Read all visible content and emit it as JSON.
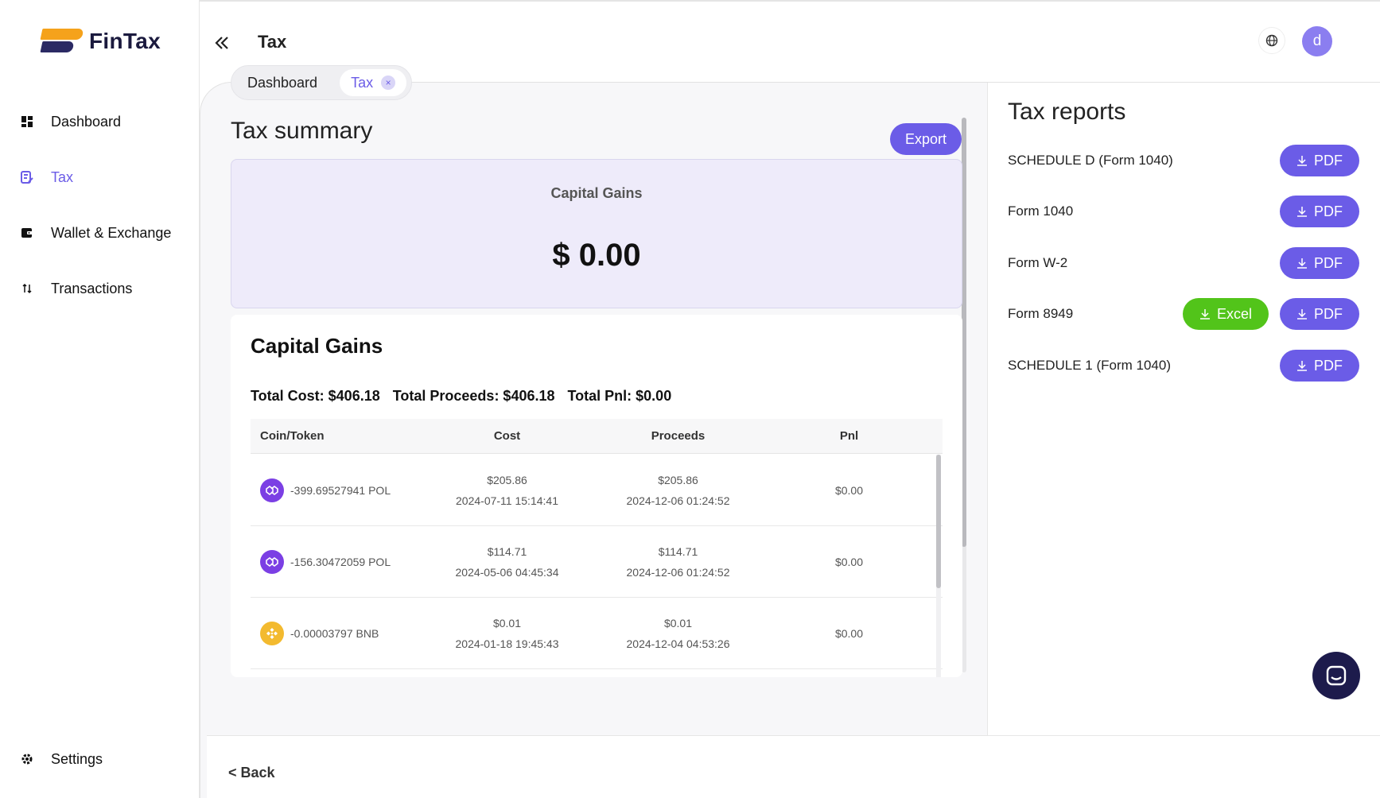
{
  "app": {
    "brand": "FinTax",
    "title": "Tax"
  },
  "sidebar": {
    "items": [
      {
        "label": "Dashboard",
        "icon": "dashboard-icon",
        "active": false
      },
      {
        "label": "Tax",
        "icon": "tax-icon",
        "active": true
      },
      {
        "label": "Wallet & Exchange",
        "icon": "wallet-icon",
        "active": false
      },
      {
        "label": "Transactions",
        "icon": "transactions-icon",
        "active": false
      }
    ],
    "settings_label": "Settings"
  },
  "header": {
    "avatar_initial": "d"
  },
  "tabs": [
    {
      "label": "Dashboard",
      "active": false
    },
    {
      "label": "Tax",
      "active": true,
      "closable": true
    }
  ],
  "summary": {
    "title": "Tax summary",
    "export_label": "Export",
    "card_label": "Capital Gains",
    "card_value": "$ 0.00"
  },
  "capital_gains": {
    "heading": "Capital Gains",
    "totals": {
      "cost": "Total Cost: $406.18",
      "proceeds": "Total Proceeds: $406.18",
      "pnl": "Total Pnl: $0.00"
    },
    "columns": [
      "Coin/Token",
      "Cost",
      "Proceeds",
      "Pnl"
    ],
    "rows": [
      {
        "coin": "-399.69527941 POL",
        "coin_type": "pol",
        "cost": "$205.86",
        "cost_date": "2024-07-11 15:14:41",
        "proceeds": "$205.86",
        "proceeds_date": "2024-12-06 01:24:52",
        "pnl": "$0.00"
      },
      {
        "coin": "-156.30472059 POL",
        "coin_type": "pol",
        "cost": "$114.71",
        "cost_date": "2024-05-06 04:45:34",
        "proceeds": "$114.71",
        "proceeds_date": "2024-12-06 01:24:52",
        "pnl": "$0.00"
      },
      {
        "coin": "-0.00003797 BNB",
        "coin_type": "bnb",
        "cost": "$0.01",
        "cost_date": "2024-01-18 19:45:43",
        "proceeds": "$0.01",
        "proceeds_date": "2024-12-04 04:53:26",
        "pnl": "$0.00"
      }
    ]
  },
  "reports": {
    "title": "Tax reports",
    "items": [
      {
        "label": "SCHEDULE D (Form 1040)",
        "pdf": "PDF"
      },
      {
        "label": "Form 1040",
        "pdf": "PDF"
      },
      {
        "label": "Form W-2",
        "pdf": "PDF"
      },
      {
        "label": "Form 8949",
        "excel": "Excel",
        "pdf": "PDF"
      },
      {
        "label": "SCHEDULE 1 (Form 1040)",
        "pdf": "PDF"
      }
    ]
  },
  "footer": {
    "back_label": "< Back"
  },
  "colors": {
    "accent": "#6b5ce7",
    "excel": "#52c41a",
    "card_bg": "#eeebfa",
    "brand_orange": "#f5a21b",
    "brand_navy": "#2b2a64"
  }
}
